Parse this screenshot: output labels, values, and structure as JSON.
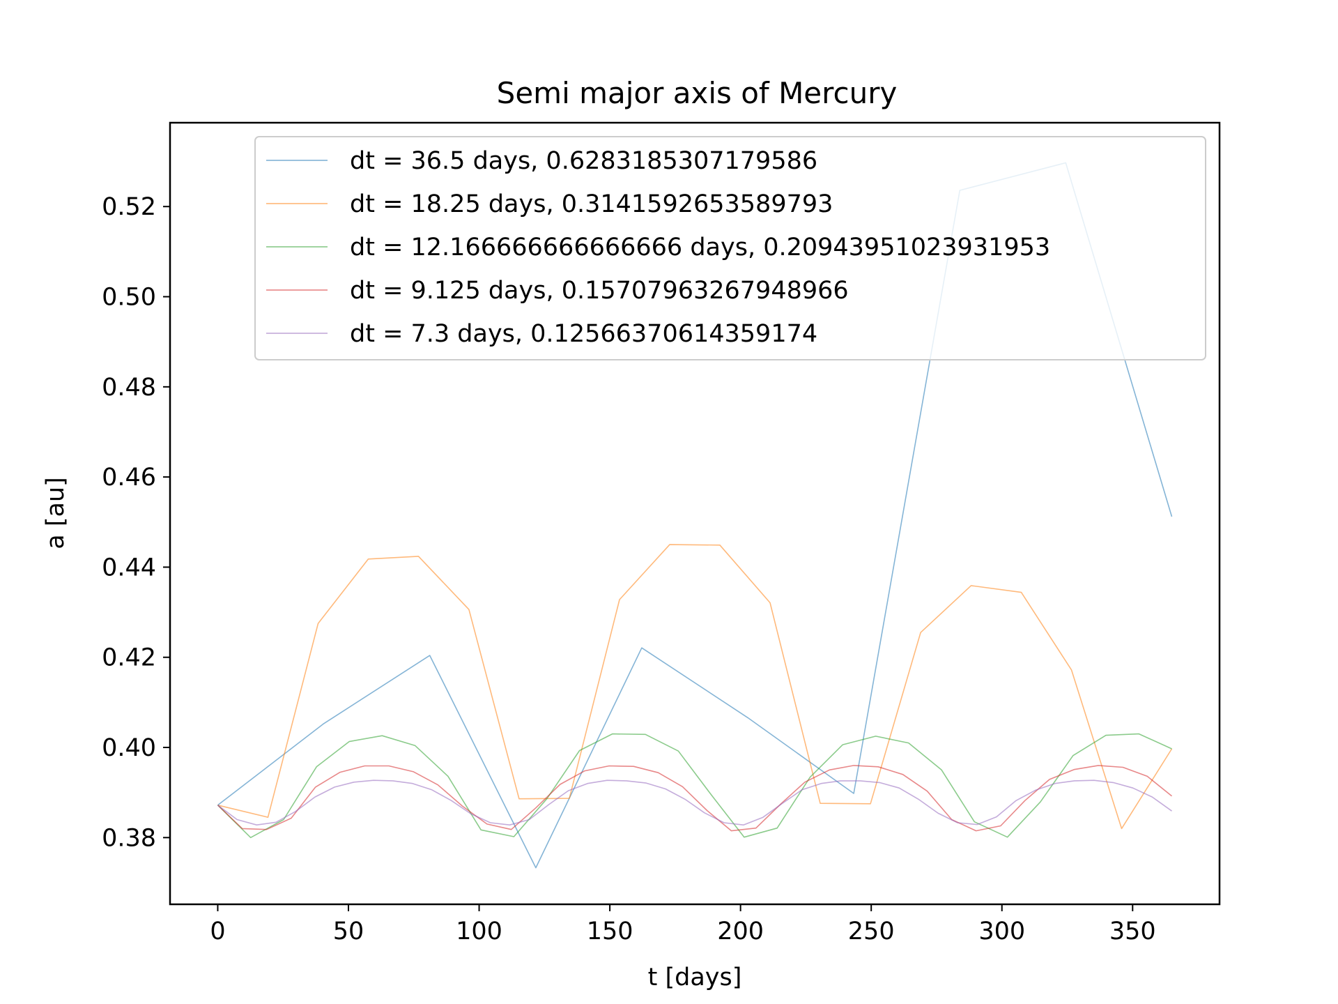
{
  "chart_data": {
    "type": "line",
    "title": "Semi major axis of Mercury",
    "xlabel": "t [days]",
    "ylabel": "a [au]",
    "xlim": [
      -18.25,
      383.25
    ],
    "ylim": [
      0.3652,
      0.5386
    ],
    "xticks": [
      0,
      50,
      100,
      150,
      200,
      250,
      300,
      350
    ],
    "yticks": [
      0.38,
      0.4,
      0.42,
      0.44,
      0.46,
      0.48,
      0.5,
      0.52
    ],
    "xtick_labels": [
      "0",
      "50",
      "100",
      "150",
      "200",
      "250",
      "300",
      "350"
    ],
    "ytick_labels": [
      "0.38",
      "0.40",
      "0.42",
      "0.44",
      "0.46",
      "0.48",
      "0.50",
      "0.52"
    ],
    "grid": false,
    "legend_position": "top",
    "series": [
      {
        "name": "dt = 36.5 days, 0.6283185307179586",
        "color": "#1f77b4",
        "x": [
          0,
          40.6,
          81.1,
          121.7,
          162.2,
          202.8,
          243.3,
          283.9,
          324.4,
          365
        ],
        "y": [
          0.3872,
          0.4053,
          0.4204,
          0.3733,
          0.4221,
          0.4066,
          0.3898,
          0.5236,
          0.5297,
          0.4512
        ]
      },
      {
        "name": "dt = 18.25 days, 0.3141592653589793",
        "color": "#ff7f0e",
        "x": [
          0,
          19.2,
          38.4,
          57.6,
          76.8,
          96.1,
          115.3,
          134.5,
          153.7,
          172.9,
          192.1,
          211.3,
          230.5,
          249.7,
          268.9,
          288.2,
          307.4,
          326.6,
          345.8,
          365
        ],
        "y": [
          0.3872,
          0.3845,
          0.4275,
          0.4418,
          0.4424,
          0.4306,
          0.3886,
          0.3887,
          0.4328,
          0.445,
          0.4449,
          0.4321,
          0.3876,
          0.3875,
          0.4255,
          0.4359,
          0.4344,
          0.4172,
          0.382,
          0.3997
        ]
      },
      {
        "name": "dt = 12.166666666666666 days, 0.20943951023931953",
        "color": "#2ca02c",
        "x": [
          0,
          12.6,
          25.2,
          37.8,
          50.3,
          62.9,
          75.5,
          88.1,
          100.7,
          113.3,
          125.9,
          138.4,
          151.0,
          163.6,
          176.2,
          188.8,
          201.4,
          214.0,
          226.6,
          239.1,
          251.7,
          264.3,
          276.9,
          289.5,
          302.1,
          314.7,
          327.2,
          339.8,
          352.4,
          365
        ],
        "y": [
          0.3872,
          0.38,
          0.384,
          0.3957,
          0.4013,
          0.4026,
          0.4004,
          0.3936,
          0.3817,
          0.3802,
          0.3886,
          0.3993,
          0.403,
          0.4029,
          0.3992,
          0.3895,
          0.3801,
          0.3821,
          0.3934,
          0.4006,
          0.4025,
          0.401,
          0.395,
          0.3835,
          0.3801,
          0.3879,
          0.3982,
          0.4027,
          0.403,
          0.3997
        ]
      },
      {
        "name": "dt = 9.125 days, 0.15707963267948966",
        "color": "#d62728",
        "x": [
          0,
          9.4,
          18.7,
          28.1,
          37.4,
          46.8,
          56.2,
          65.5,
          74.9,
          84.2,
          93.6,
          103.0,
          112.3,
          121.7,
          131.0,
          140.4,
          149.7,
          159.1,
          168.5,
          177.8,
          187.2,
          196.5,
          205.9,
          215.3,
          224.6,
          234.0,
          243.3,
          252.7,
          262.1,
          271.4,
          280.8,
          290.1,
          299.5,
          308.8,
          318.2,
          327.6,
          336.9,
          346.3,
          355.6,
          365
        ],
        "y": [
          0.3872,
          0.382,
          0.3818,
          0.3843,
          0.3912,
          0.3945,
          0.3959,
          0.3959,
          0.3946,
          0.3917,
          0.387,
          0.383,
          0.3818,
          0.3866,
          0.3918,
          0.3948,
          0.3959,
          0.3958,
          0.3944,
          0.3913,
          0.386,
          0.3815,
          0.3821,
          0.3874,
          0.3923,
          0.395,
          0.396,
          0.3957,
          0.394,
          0.3903,
          0.384,
          0.3815,
          0.3826,
          0.3882,
          0.3929,
          0.3951,
          0.396,
          0.3956,
          0.3936,
          0.3892
        ]
      },
      {
        "name": "dt = 7.3 days, 0.12566370614359174",
        "color": "#9467bd",
        "x": [
          0,
          7.4,
          14.9,
          22.3,
          29.8,
          37.2,
          44.7,
          52.1,
          59.6,
          67.0,
          74.5,
          81.9,
          89.4,
          96.8,
          104.3,
          111.7,
          119.2,
          126.6,
          134.1,
          141.5,
          149.0,
          156.4,
          163.9,
          171.3,
          178.8,
          186.2,
          193.7,
          201.1,
          208.6,
          216.0,
          223.5,
          230.9,
          238.3,
          245.8,
          253.2,
          260.7,
          268.1,
          275.6,
          283.0,
          290.5,
          297.9,
          305.4,
          312.8,
          320.3,
          327.7,
          335.2,
          342.6,
          350.1,
          357.5,
          365
        ],
        "y": [
          0.3872,
          0.384,
          0.3828,
          0.3834,
          0.3858,
          0.389,
          0.3912,
          0.3923,
          0.3927,
          0.3926,
          0.392,
          0.3906,
          0.3882,
          0.3853,
          0.3833,
          0.3828,
          0.384,
          0.3873,
          0.3904,
          0.392,
          0.3927,
          0.3926,
          0.3921,
          0.3908,
          0.3885,
          0.3855,
          0.3833,
          0.3828,
          0.3845,
          0.3876,
          0.3906,
          0.392,
          0.3926,
          0.3926,
          0.3922,
          0.391,
          0.3885,
          0.3854,
          0.3833,
          0.3829,
          0.3846,
          0.3882,
          0.3905,
          0.392,
          0.3926,
          0.3927,
          0.3922,
          0.391,
          0.389,
          0.3859
        ]
      }
    ]
  }
}
